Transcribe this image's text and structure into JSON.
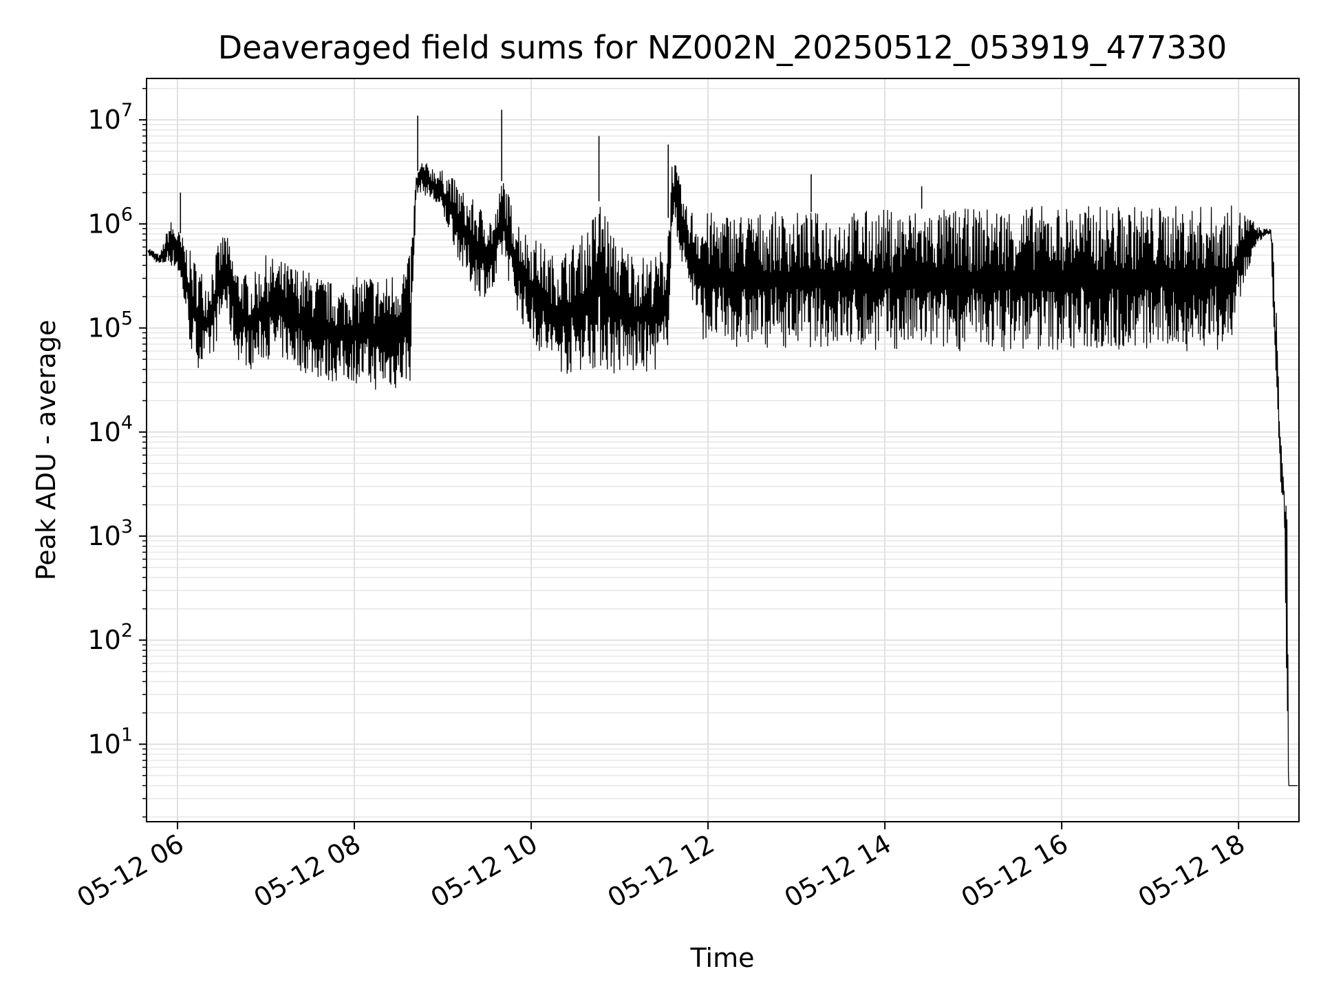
{
  "chart_data": {
    "type": "line",
    "title": "Deaveraged field sums for NZ002N_20250512_053919_477330",
    "xlabel": "Time",
    "ylabel": "Peak ADU - average",
    "yscale": "log",
    "grid": true,
    "legend": "none",
    "x_unit": "hours",
    "xlim": [
      "2025-05-12 05:39",
      "2025-05-12 18:41"
    ],
    "ylim": [
      1.8,
      25000000
    ],
    "x_ticks": [
      {
        "value": "2025-05-12 06:00",
        "label": "05-12 06"
      },
      {
        "value": "2025-05-12 08:00",
        "label": "05-12 08"
      },
      {
        "value": "2025-05-12 10:00",
        "label": "05-12 10"
      },
      {
        "value": "2025-05-12 12:00",
        "label": "05-12 12"
      },
      {
        "value": "2025-05-12 14:00",
        "label": "05-12 14"
      },
      {
        "value": "2025-05-12 16:00",
        "label": "05-12 16"
      },
      {
        "value": "2025-05-12 18:00",
        "label": "05-12 18"
      }
    ],
    "y_ticks": [
      {
        "value": 10,
        "base": "10",
        "exp": "1"
      },
      {
        "value": 100,
        "base": "10",
        "exp": "2"
      },
      {
        "value": 1000,
        "base": "10",
        "exp": "3"
      },
      {
        "value": 10000,
        "base": "10",
        "exp": "4"
      },
      {
        "value": 100000,
        "base": "10",
        "exp": "5"
      },
      {
        "value": 1000000,
        "base": "10",
        "exp": "6"
      },
      {
        "value": 10000000,
        "base": "10",
        "exp": "7"
      }
    ],
    "series": [
      {
        "color": "#000000",
        "x": [
          "2025-05-12 05:40",
          "2025-05-12 05:48",
          "2025-05-12 05:55",
          "2025-05-12 06:00",
          "2025-05-12 06:05",
          "2025-05-12 06:10",
          "2025-05-12 06:15",
          "2025-05-12 06:20",
          "2025-05-12 06:25",
          "2025-05-12 06:32",
          "2025-05-12 06:40",
          "2025-05-12 06:50",
          "2025-05-12 07:00",
          "2025-05-12 07:10",
          "2025-05-12 07:20",
          "2025-05-12 07:30",
          "2025-05-12 07:40",
          "2025-05-12 07:50",
          "2025-05-12 08:00",
          "2025-05-12 08:10",
          "2025-05-12 08:20",
          "2025-05-12 08:30",
          "2025-05-12 08:38",
          "2025-05-12 08:42",
          "2025-05-12 08:46",
          "2025-05-12 08:55",
          "2025-05-12 09:05",
          "2025-05-12 09:15",
          "2025-05-12 09:25",
          "2025-05-12 09:35",
          "2025-05-12 09:41",
          "2025-05-12 09:47",
          "2025-05-12 09:55",
          "2025-05-12 10:05",
          "2025-05-12 10:15",
          "2025-05-12 10:25",
          "2025-05-12 10:35",
          "2025-05-12 10:45",
          "2025-05-12 10:48",
          "2025-05-12 10:55",
          "2025-05-12 11:05",
          "2025-05-12 11:15",
          "2025-05-12 11:25",
          "2025-05-12 11:32",
          "2025-05-12 11:36",
          "2025-05-12 11:45",
          "2025-05-12 11:55",
          "2025-05-12 12:10",
          "2025-05-12 12:30",
          "2025-05-12 12:50",
          "2025-05-12 13:10",
          "2025-05-12 13:30",
          "2025-05-12 14:00",
          "2025-05-12 14:30",
          "2025-05-12 15:00",
          "2025-05-12 15:30",
          "2025-05-12 16:00",
          "2025-05-12 16:30",
          "2025-05-12 17:00",
          "2025-05-12 17:30",
          "2025-05-12 17:55",
          "2025-05-12 18:05",
          "2025-05-12 18:15",
          "2025-05-12 18:22",
          "2025-05-12 18:25",
          "2025-05-12 18:28",
          "2025-05-12 18:31",
          "2025-05-12 18:33",
          "2025-05-12 18:34",
          "2025-05-12 18:35",
          "2025-05-12 18:36",
          "2025-05-12 18:38",
          "2025-05-12 18:40"
        ],
        "high": [
          600000,
          500000,
          1100000,
          900000,
          700000,
          500000,
          400000,
          300000,
          500000,
          900000,
          400000,
          300000,
          500000,
          450000,
          400000,
          350000,
          300000,
          250000,
          300000,
          350000,
          300000,
          400000,
          500000,
          3000000,
          4000000,
          3500000,
          3000000,
          2000000,
          1500000,
          1200000,
          3000000,
          1500000,
          900000,
          700000,
          500000,
          600000,
          800000,
          1500000,
          2000000,
          800000,
          600000,
          500000,
          500000,
          700000,
          5000000,
          1500000,
          1300000,
          1300000,
          1300000,
          1300000,
          1300000,
          1300000,
          1400000,
          1400000,
          1400000,
          1500000,
          1500000,
          1500000,
          1500000,
          1500000,
          1500000,
          1300000,
          900000,
          900000,
          400000,
          15000,
          3000,
          2000,
          4,
          4,
          4,
          4,
          4
        ],
        "low": [
          500000,
          400000,
          400000,
          350000,
          150000,
          50000,
          40000,
          40000,
          60000,
          150000,
          50000,
          40000,
          50000,
          50000,
          40000,
          35000,
          30000,
          30000,
          30000,
          25000,
          25000,
          25000,
          30000,
          2000000,
          2000000,
          1500000,
          800000,
          300000,
          200000,
          200000,
          500000,
          200000,
          100000,
          60000,
          40000,
          35000,
          40000,
          40000,
          40000,
          35000,
          35000,
          35000,
          40000,
          40000,
          1000000,
          300000,
          80000,
          65000,
          65000,
          65000,
          65000,
          65000,
          60000,
          60000,
          60000,
          60000,
          60000,
          60000,
          60000,
          60000,
          60000,
          300000,
          700000,
          800000,
          15000,
          3000,
          2000,
          4,
          4,
          4,
          4,
          4,
          4
        ],
        "spikes": [
          {
            "x": "2025-05-12 06:02",
            "y": 2000000
          },
          {
            "x": "2025-05-12 08:43",
            "y": 11000000
          },
          {
            "x": "2025-05-12 09:40",
            "y": 12500000
          },
          {
            "x": "2025-05-12 10:46",
            "y": 7000000
          },
          {
            "x": "2025-05-12 11:33",
            "y": 5800000
          },
          {
            "x": "2025-05-12 13:10",
            "y": 3000000
          },
          {
            "x": "2025-05-12 14:25",
            "y": 2300000
          }
        ]
      }
    ]
  }
}
